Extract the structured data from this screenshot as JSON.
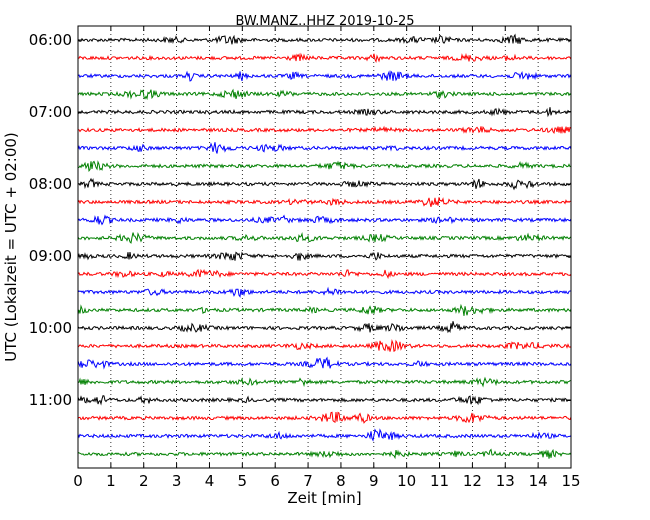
{
  "chart_data": {
    "type": "line",
    "title": "BW.MANZ..HHZ 2019-10-25",
    "xlabel": "Zeit  [min]",
    "ylabel": "UTC (Lokalzeit = UTC + 02:00)",
    "xlim": [
      0,
      15
    ],
    "x_ticks": [
      "0",
      "1",
      "2",
      "3",
      "4",
      "5",
      "6",
      "7",
      "8",
      "9",
      "10",
      "11",
      "12",
      "13",
      "14",
      "15"
    ],
    "y_ticks": [
      "06:00",
      "07:00",
      "08:00",
      "09:00",
      "10:00",
      "11:00"
    ],
    "grid": "vertical-dotted",
    "trace_interval_minutes": 15,
    "trace_colors": [
      "#000000",
      "#ff0000",
      "#0000ff",
      "#008000"
    ],
    "traces": [
      {
        "start": "06:00",
        "color": "#000000"
      },
      {
        "start": "06:15",
        "color": "#ff0000"
      },
      {
        "start": "06:30",
        "color": "#0000ff"
      },
      {
        "start": "06:45",
        "color": "#008000"
      },
      {
        "start": "07:00",
        "color": "#000000"
      },
      {
        "start": "07:15",
        "color": "#ff0000"
      },
      {
        "start": "07:30",
        "color": "#0000ff"
      },
      {
        "start": "07:45",
        "color": "#008000"
      },
      {
        "start": "08:00",
        "color": "#000000"
      },
      {
        "start": "08:15",
        "color": "#ff0000"
      },
      {
        "start": "08:30",
        "color": "#0000ff"
      },
      {
        "start": "08:45",
        "color": "#008000"
      },
      {
        "start": "09:00",
        "color": "#000000"
      },
      {
        "start": "09:15",
        "color": "#ff0000"
      },
      {
        "start": "09:30",
        "color": "#0000ff"
      },
      {
        "start": "09:45",
        "color": "#008000"
      },
      {
        "start": "10:00",
        "color": "#000000"
      },
      {
        "start": "10:15",
        "color": "#ff0000"
      },
      {
        "start": "10:30",
        "color": "#0000ff"
      },
      {
        "start": "10:45",
        "color": "#008000"
      },
      {
        "start": "11:00",
        "color": "#000000"
      },
      {
        "start": "11:15",
        "color": "#ff0000"
      },
      {
        "start": "11:30",
        "color": "#0000ff"
      },
      {
        "start": "11:45",
        "color": "#008000"
      }
    ]
  }
}
